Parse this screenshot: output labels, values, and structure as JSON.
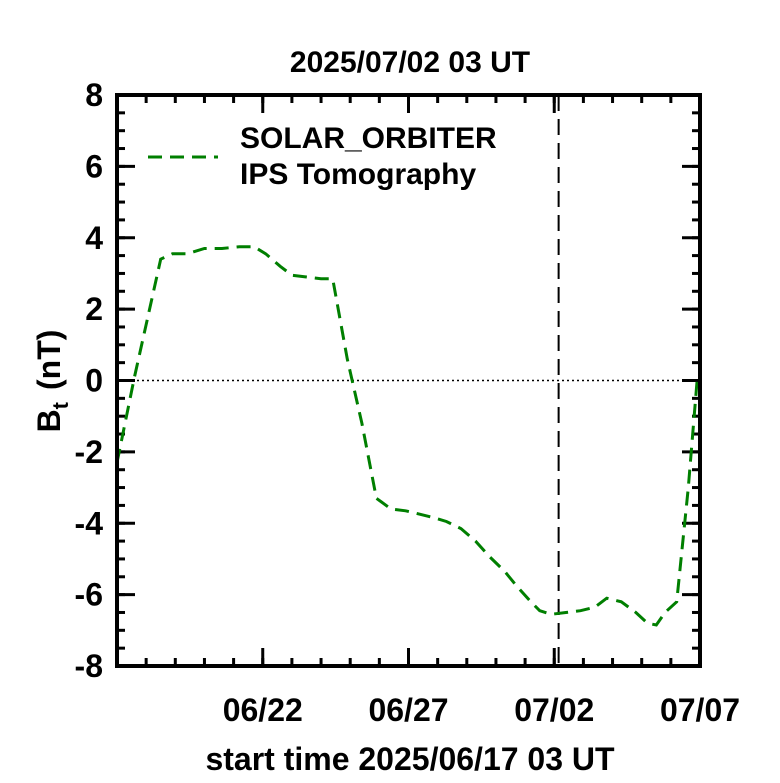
{
  "chart_data": {
    "type": "line",
    "title": "2025/07/02 03 UT",
    "xlabel": "start time 2025/06/17 03 UT",
    "ylabel_main": "B",
    "ylabel_sub": "t",
    "ylabel_unit": "(nT)",
    "x_unit": "days since start time",
    "xlim": [
      0,
      20
    ],
    "ylim": [
      -8,
      8
    ],
    "x_ticks": [
      {
        "x": 5,
        "label": "06/22"
      },
      {
        "x": 10,
        "label": "06/27"
      },
      {
        "x": 15,
        "label": "07/02"
      },
      {
        "x": 20,
        "label": "07/07"
      }
    ],
    "y_ticks": [
      {
        "y": 8,
        "label": "8"
      },
      {
        "y": 6,
        "label": "6"
      },
      {
        "y": 4,
        "label": "4"
      },
      {
        "y": 2,
        "label": "2"
      },
      {
        "y": 0,
        "label": "0"
      },
      {
        "y": -2,
        "label": "-2"
      },
      {
        "y": -4,
        "label": "-4"
      },
      {
        "y": -6,
        "label": "-6"
      },
      {
        "y": -8,
        "label": "-8"
      }
    ],
    "current_time_x": 15.15,
    "zero_line": true,
    "legend_position": "top-left",
    "series": [
      {
        "name": "SOLAR_ORBITER\nIPS Tomography",
        "legend_line1": "SOLAR_ORBITER",
        "legend_line2": "IPS Tomography",
        "color": "#007f00",
        "style": "dashed",
        "x": [
          0,
          0.6,
          1.5,
          1.9,
          2.4,
          3.0,
          3.6,
          4.2,
          4.7,
          5.1,
          5.6,
          6.0,
          6.5,
          7.0,
          7.4,
          7.9,
          8.4,
          8.9,
          9.4,
          9.9,
          10.4,
          10.9,
          11.3,
          11.8,
          12.3,
          12.8,
          13.3,
          13.7,
          14.2,
          14.5,
          14.9,
          15.4,
          15.9,
          16.4,
          16.8,
          17.3,
          17.8,
          18.2,
          18.5,
          18.8,
          19.2,
          19.6,
          19.9
        ],
        "y": [
          -2.3,
          0.1,
          3.4,
          3.55,
          3.55,
          3.7,
          3.7,
          3.75,
          3.75,
          3.55,
          3.2,
          2.95,
          2.9,
          2.85,
          2.85,
          0.6,
          -1.2,
          -3.3,
          -3.6,
          -3.65,
          -3.75,
          -3.85,
          -3.95,
          -4.15,
          -4.5,
          -4.95,
          -5.35,
          -5.75,
          -6.2,
          -6.45,
          -6.55,
          -6.5,
          -6.45,
          -6.35,
          -6.1,
          -6.2,
          -6.5,
          -6.8,
          -6.85,
          -6.5,
          -6.2,
          -3.0,
          0.0
        ]
      }
    ]
  }
}
